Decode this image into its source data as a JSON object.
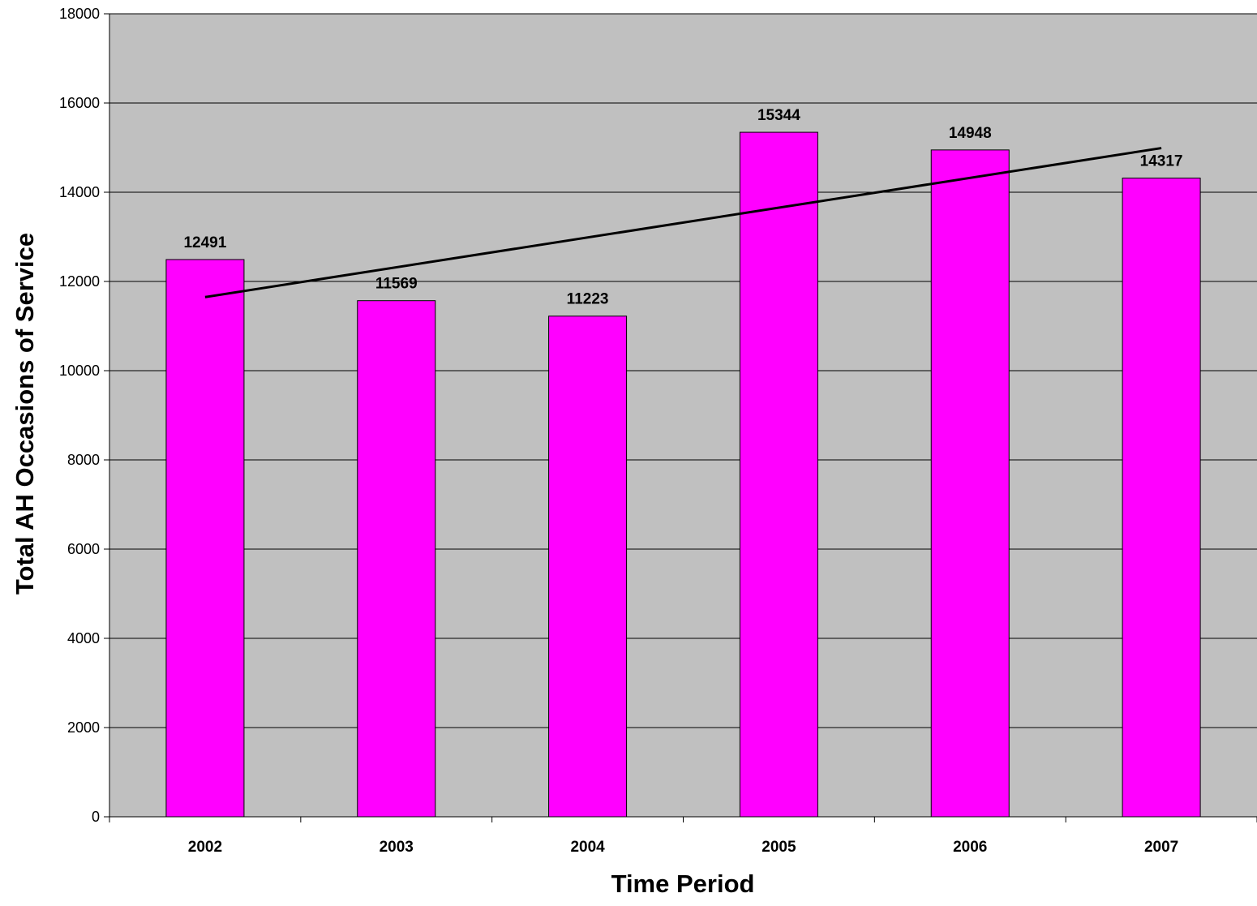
{
  "chart_data": {
    "type": "bar",
    "categories": [
      "2002",
      "2003",
      "2004",
      "2005",
      "2006",
      "2007"
    ],
    "values": [
      12491,
      11569,
      11223,
      15344,
      14948,
      14317
    ],
    "data_labels": [
      "12491",
      "11569",
      "11223",
      "15344",
      "14948",
      "14317"
    ],
    "title": "",
    "xlabel": "Time Period",
    "ylabel": "Total AH Occasions of Service",
    "ylim": [
      0,
      18000
    ],
    "yticks": [
      0,
      2000,
      4000,
      6000,
      8000,
      10000,
      12000,
      14000,
      16000,
      18000
    ],
    "ytick_labels": [
      "0",
      "2000",
      "4000",
      "6000",
      "8000",
      "10000",
      "12000",
      "14000",
      "16000",
      "18000"
    ],
    "grid": true,
    "legend": "none",
    "trendline": {
      "type": "linear",
      "start": {
        "x": "2002",
        "y": 11650
      },
      "end": {
        "x": "2007",
        "y": 14990
      }
    },
    "colors": {
      "bar_fill": "#ff00ff",
      "bar_stroke": "#000000",
      "plot_background": "#c0c0c0",
      "gridline": "#000000",
      "trendline": "#000000"
    }
  }
}
